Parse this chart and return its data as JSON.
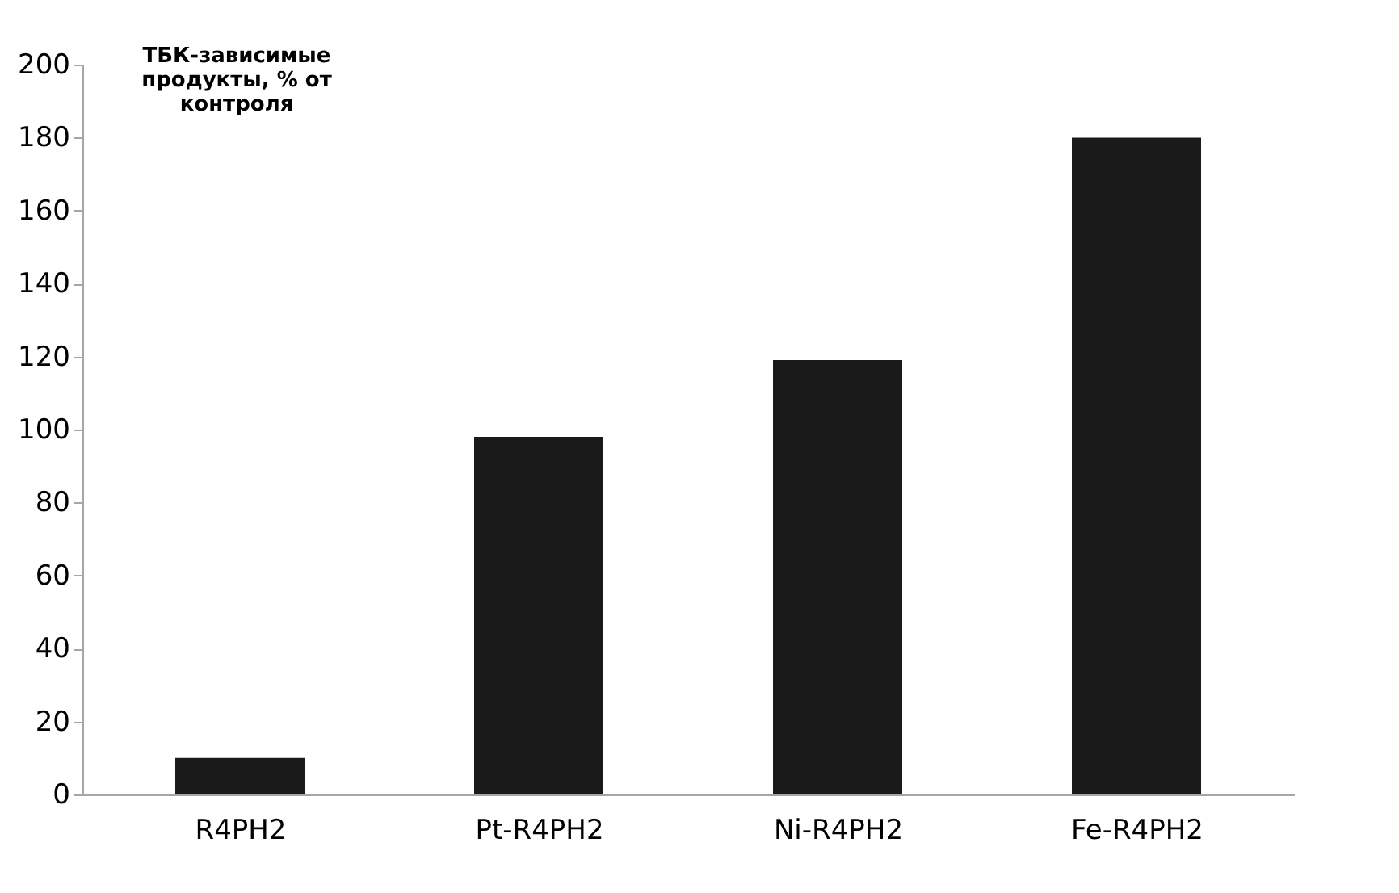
{
  "chart_data": {
    "type": "bar",
    "ylabel": "ТБК-зависимые продукты, % от контроля",
    "categories": [
      "R4PH2",
      "Pt-R4PH2",
      "Ni-R4PH2",
      "Fe-R4PH2"
    ],
    "values": [
      10,
      98,
      119,
      180
    ],
    "color": "#1a1a1a",
    "ylim": [
      0,
      200
    ],
    "yticks": [
      0,
      20,
      40,
      60,
      80,
      100,
      120,
      140,
      160,
      180,
      200
    ],
    "grid": false
  }
}
